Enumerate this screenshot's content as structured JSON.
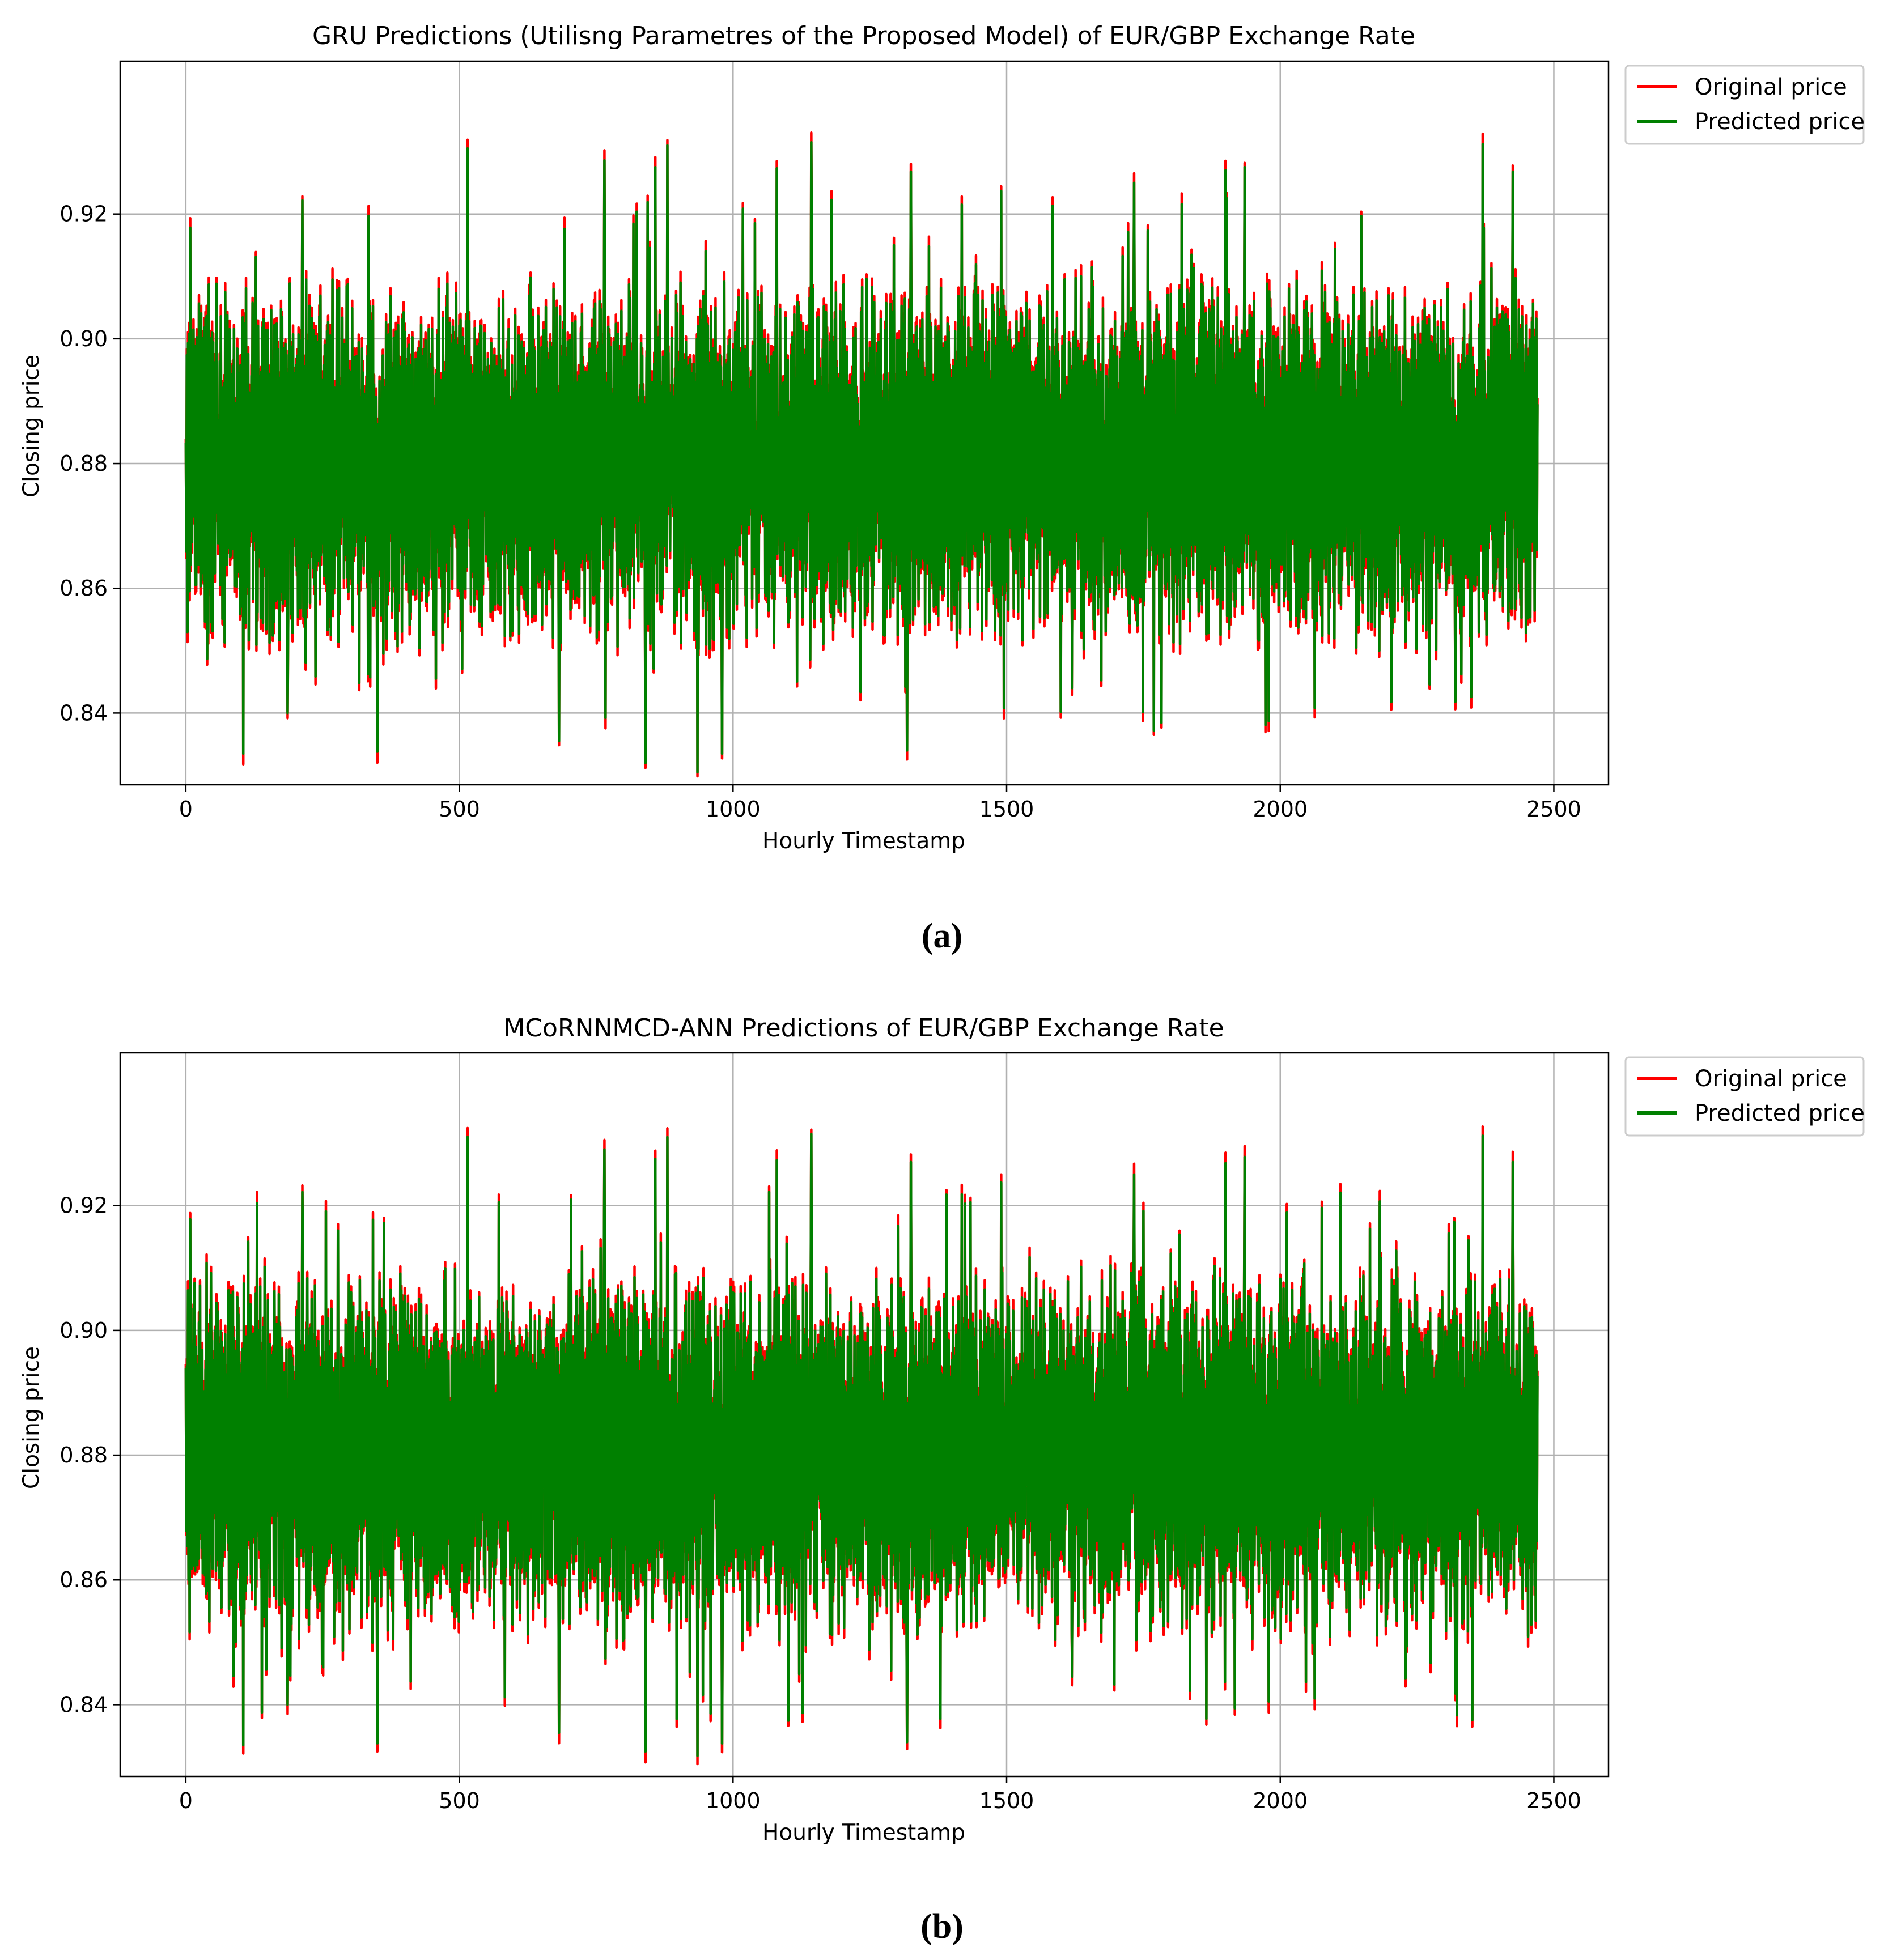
{
  "colors": {
    "original": "#ff0000",
    "predicted": "#008000",
    "grid": "#b0b0b0"
  },
  "chart_data": [
    {
      "type": "line",
      "panel_label": "(a)",
      "title": "GRU Predictions (Utilisng Parametres of the Proposed Model) of EUR/GBP Exchange Rate",
      "xlabel": "Hourly Timestamp",
      "ylabel": "Closing price",
      "xlim": [
        -120,
        2600
      ],
      "ylim": [
        0.8285,
        0.9445
      ],
      "xticks": [
        0,
        500,
        1000,
        1500,
        2000,
        2500
      ],
      "yticks": [
        0.84,
        0.86,
        0.88,
        0.9,
        0.92
      ],
      "ytick_labels": [
        "0.84",
        "0.86",
        "0.88",
        "0.90",
        "0.92"
      ],
      "grid": true,
      "legend_position": "outside-top-right",
      "n_points": 2470,
      "series": [
        {
          "name": "Original price",
          "color": "#ff0000"
        },
        {
          "name": "Predicted price",
          "color": "#008000"
        }
      ],
      "data_summary": {
        "x_min": 0,
        "x_max": 2470,
        "y_typical_low": 0.855,
        "y_typical_high": 0.905,
        "y_min": 0.8305,
        "y_max": 0.9315
      },
      "extremes": [
        [
          8,
          0.9178
        ],
        [
          105,
          0.8335
        ],
        [
          186,
          0.84
        ],
        [
          213,
          0.9222
        ],
        [
          350,
          0.8338
        ],
        [
          515,
          0.9305
        ],
        [
          682,
          0.8355
        ],
        [
          765,
          0.9286
        ],
        [
          840,
          0.832
        ],
        [
          858,
          0.9275
        ],
        [
          880,
          0.931
        ],
        [
          935,
          0.8305
        ],
        [
          980,
          0.8335
        ],
        [
          1080,
          0.9273
        ],
        [
          1143,
          0.9315
        ],
        [
          1318,
          0.834
        ],
        [
          1325,
          0.9268
        ],
        [
          1418,
          0.9215
        ],
        [
          1490,
          0.9237
        ],
        [
          1620,
          0.844
        ],
        [
          1733,
          0.925
        ],
        [
          1900,
          0.927
        ],
        [
          1935,
          0.9275
        ],
        [
          2063,
          0.8408
        ],
        [
          2370,
          0.9312
        ],
        [
          2320,
          0.8418
        ],
        [
          2425,
          0.9268
        ]
      ]
    },
    {
      "type": "line",
      "panel_label": "(b)",
      "title": "MCoRNNMCD-ANN Predictions of EUR/GBP Exchange Rate",
      "xlabel": "Hourly Timestamp",
      "ylabel": "Closing price",
      "xlim": [
        -120,
        2600
      ],
      "ylim": [
        0.8285,
        0.9445
      ],
      "xticks": [
        0,
        500,
        1000,
        1500,
        2000,
        2500
      ],
      "yticks": [
        0.84,
        0.86,
        0.88,
        0.9,
        0.92
      ],
      "ytick_labels": [
        "0.84",
        "0.86",
        "0.88",
        "0.90",
        "0.92"
      ],
      "grid": true,
      "legend_position": "outside-top-right",
      "n_points": 2470,
      "series": [
        {
          "name": "Original price",
          "color": "#ff0000"
        },
        {
          "name": "Predicted price",
          "color": "#008000"
        }
      ],
      "data_summary": {
        "x_min": 0,
        "x_max": 2470,
        "y_typical_low": 0.855,
        "y_typical_high": 0.905,
        "y_min": 0.8318,
        "y_max": 0.9315
      },
      "extremes": [
        [
          8,
          0.9178
        ],
        [
          105,
          0.8335
        ],
        [
          186,
          0.84
        ],
        [
          213,
          0.9222
        ],
        [
          350,
          0.8338
        ],
        [
          515,
          0.931
        ],
        [
          682,
          0.8355
        ],
        [
          765,
          0.929
        ],
        [
          840,
          0.8325
        ],
        [
          858,
          0.9275
        ],
        [
          880,
          0.931
        ],
        [
          935,
          0.8318
        ],
        [
          980,
          0.8338
        ],
        [
          1080,
          0.9273
        ],
        [
          1143,
          0.9315
        ],
        [
          1318,
          0.834
        ],
        [
          1325,
          0.927
        ],
        [
          1418,
          0.9218
        ],
        [
          1490,
          0.9237
        ],
        [
          1620,
          0.8445
        ],
        [
          1733,
          0.925
        ],
        [
          1900,
          0.9268
        ],
        [
          1935,
          0.9278
        ],
        [
          2063,
          0.841
        ],
        [
          2370,
          0.9312
        ],
        [
          2320,
          0.8418
        ],
        [
          2425,
          0.927
        ]
      ]
    }
  ]
}
